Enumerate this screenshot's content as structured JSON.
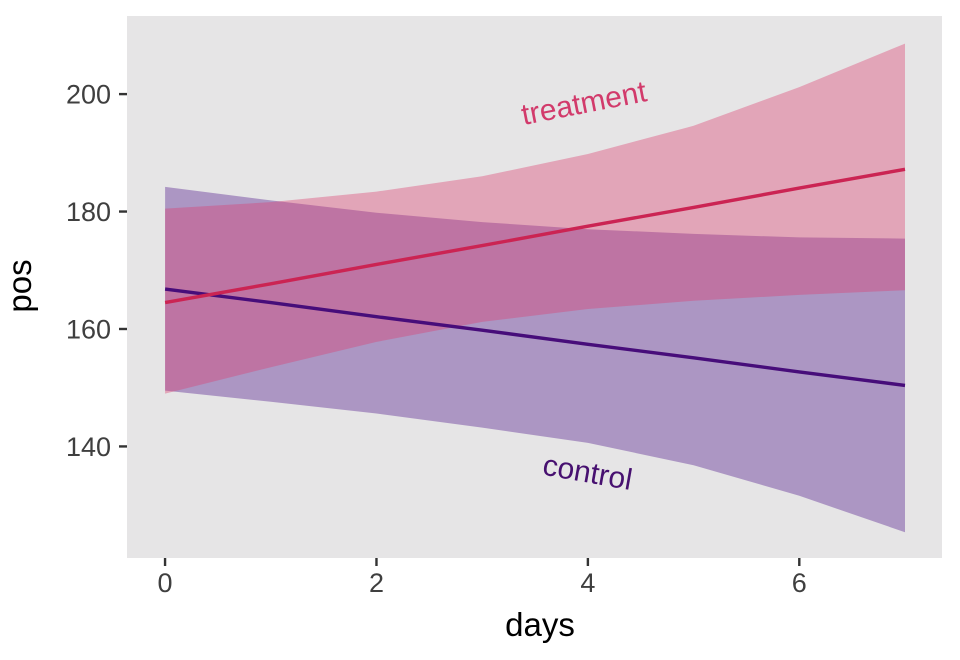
{
  "chart_data": {
    "type": "line",
    "title": "",
    "xlabel": "days",
    "ylabel": "pos",
    "x": [
      0,
      1,
      2,
      3,
      4,
      5,
      6,
      7
    ],
    "x_ticks": [
      0,
      2,
      4,
      6
    ],
    "y_ticks": [
      140,
      160,
      180,
      200
    ],
    "xlim": [
      -0.36,
      7.35
    ],
    "ylim": [
      121.0,
      213.3
    ],
    "grid": false,
    "panel_background": "#E6E5E6",
    "axis_text_color": "#3F3F3F",
    "axis_tick_color": "#333333",
    "series": [
      {
        "name": "control",
        "line_color": "#470D7A",
        "label_color": "#471070",
        "fill_color": "rgba(80,20,140,0.38)",
        "line": [
          166.8,
          164.5,
          162.1,
          159.8,
          157.4,
          155.1,
          152.7,
          150.4
        ],
        "upper": [
          184.2,
          181.9,
          179.8,
          178.2,
          177.0,
          176.2,
          175.6,
          175.4
        ],
        "lower": [
          149.5,
          147.6,
          145.6,
          143.2,
          140.6,
          136.8,
          131.6,
          125.4
        ],
        "annotation": {
          "text": "control",
          "x": 3.98,
          "y": 133.9,
          "angle": 10
        }
      },
      {
        "name": "treatment",
        "line_color": "#CB2453",
        "label_color": "#D23A6B",
        "fill_color": "rgba(220,60,110,0.38)",
        "line": [
          164.5,
          167.7,
          171.0,
          174.2,
          177.5,
          180.7,
          184.0,
          187.2
        ],
        "upper": [
          180.5,
          181.6,
          183.4,
          186.0,
          189.8,
          194.6,
          201.2,
          208.6
        ],
        "lower": [
          149.0,
          153.5,
          157.8,
          161.2,
          163.4,
          164.8,
          165.8,
          166.6
        ],
        "annotation": {
          "text": "treatment",
          "x": 3.98,
          "y": 196.8,
          "angle": -11
        }
      }
    ]
  }
}
